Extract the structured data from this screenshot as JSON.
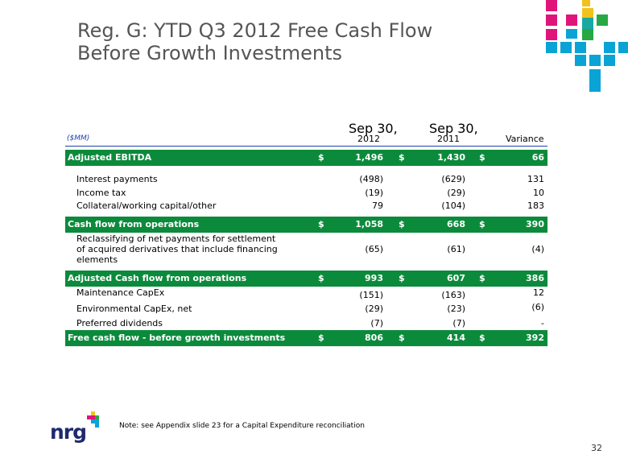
{
  "title": {
    "line1": "Reg. G: YTD Q3 2012 Free Cash Flow",
    "line2": "Before Growth Investments"
  },
  "table": {
    "units_label": "($MM)",
    "col1_header_top": "Sep 30,",
    "col1_header_bottom": "2012",
    "col2_header_top": "Sep 30,",
    "col2_header_bottom": "2011",
    "col3_header": "Variance",
    "currency": "$",
    "rows": [
      {
        "label": "Adjusted EBITDA",
        "v2012": "1,496",
        "v2011": "1,430",
        "variance": "66"
      },
      {
        "label": "Interest payments",
        "v2012": "(498)",
        "v2011": "(629)",
        "variance": "131"
      },
      {
        "label": "Income tax",
        "v2012": "(19)",
        "v2011": "(29)",
        "variance": "10"
      },
      {
        "label": "Collateral/working capital/other",
        "v2012": "79",
        "v2011": "(104)",
        "variance": "183"
      },
      {
        "label": "Cash flow from operations",
        "v2012": "1,058",
        "v2011": "668",
        "variance": "390"
      },
      {
        "label": "Reclassifying of net payments for settlement of acquired derivatives that include financing elements",
        "v2012": "(65)",
        "v2011": "(61)",
        "variance": "(4)"
      },
      {
        "label": "Adjusted Cash flow from operations",
        "v2012": "993",
        "v2011": "607",
        "variance": "386"
      },
      {
        "label": "Maintenance CapEx",
        "v2012": "(151)",
        "v2011": "(163)",
        "variance": "12"
      },
      {
        "label": "Environmental CapEx, net",
        "v2012": "(29)",
        "v2011": "(23)",
        "variance": "(6)"
      },
      {
        "label": "Preferred dividends",
        "v2012": "(7)",
        "v2011": "(7)",
        "variance": "-"
      },
      {
        "label": "Free cash flow - before growth investments",
        "v2012": "806",
        "v2011": "414",
        "variance": "392"
      }
    ]
  },
  "footer": {
    "note": "Note: see Appendix slide 23 for a Capital Expenditure reconciliation",
    "page_number": "32",
    "logo_text": "nrg"
  },
  "colors": {
    "highlight_row": "#0c8a3c",
    "header_rule": "#1f3fb0",
    "title": "#555555",
    "logo_magenta": "#e0157a",
    "logo_cyan": "#0aa3d6",
    "logo_yellow": "#f2c21b",
    "logo_green": "#27a845"
  }
}
